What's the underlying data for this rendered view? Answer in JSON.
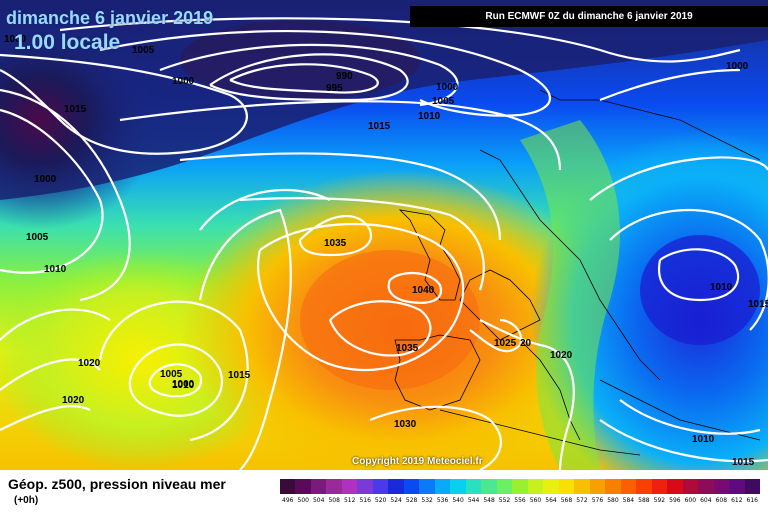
{
  "header": {
    "date": "dimanche 6 janvier 2019",
    "time": "1.00 locale",
    "run": "Run ECMWF 0Z du dimanche 6 janvier 2019"
  },
  "footer": {
    "title": "Géop. z500, pression niveau mer",
    "subtitle": "(+0h)",
    "copyright": "Copyright 2019 Meteociel.fr"
  },
  "legend": {
    "values": [
      "496",
      "500",
      "504",
      "508",
      "512",
      "516",
      "520",
      "524",
      "528",
      "532",
      "536",
      "540",
      "544",
      "548",
      "552",
      "556",
      "560",
      "564",
      "568",
      "572",
      "576",
      "580",
      "584",
      "588",
      "592",
      "596",
      "600",
      "604",
      "608",
      "612",
      "616"
    ],
    "colors": [
      "#3a0a3a",
      "#5a0a5a",
      "#7a1a7a",
      "#9a2a9a",
      "#b030c0",
      "#7a3ad8",
      "#4a3ae8",
      "#1a2ad8",
      "#0a4af0",
      "#0a7af8",
      "#0aaaf8",
      "#0ad0f0",
      "#2ae0c0",
      "#4ae890",
      "#6af060",
      "#9af030",
      "#c8f020",
      "#e8f010",
      "#f8e000",
      "#f8c000",
      "#f8a000",
      "#f88000",
      "#f86000",
      "#f84000",
      "#f02010",
      "#d80a1a",
      "#b00a3a",
      "#900a5a",
      "#780a70",
      "#600a80",
      "#400a60"
    ]
  },
  "isobars": [
    "1000",
    "1005",
    "1015",
    "1000",
    "1005",
    "1010",
    "990",
    "995",
    "1000",
    "1005",
    "1010",
    "1015",
    "1000",
    "1035",
    "1040",
    "1035",
    "1025",
    "20",
    "1020",
    "1010",
    "1015",
    "1010",
    "1005",
    "1000",
    "1015",
    "1020",
    "1020",
    "1030",
    "1010",
    "1015",
    "1000"
  ]
}
